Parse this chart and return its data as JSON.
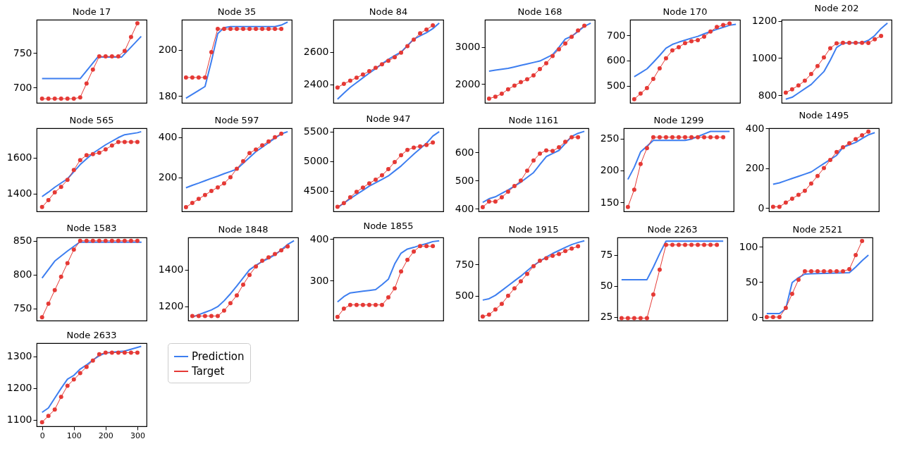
{
  "chart_data": [
    {
      "type": "line",
      "title": "Node 17",
      "xlim": [
        -17,
        329
      ],
      "ylim": [
        678,
        798
      ],
      "yticks": [
        700,
        750
      ],
      "tick_labels": "y",
      "series": [
        {
          "color": "#3d7ef0",
          "x": [
            0,
            120,
            175,
            250,
            312
          ],
          "values": [
            713,
            713,
            744,
            744,
            774
          ]
        },
        {
          "color": "#e53935",
          "marker": "circle",
          "x": [
            0,
            20,
            40,
            60,
            80,
            100,
            120,
            140,
            160,
            180,
            200,
            220,
            240,
            260,
            280,
            300
          ],
          "values": [
            684,
            684,
            684,
            684,
            684,
            684,
            686,
            706,
            726,
            745,
            745,
            745,
            745,
            753,
            773,
            793
          ]
        }
      ]
    },
    {
      "type": "line",
      "title": "Node 35",
      "categories": [
        null,
        null,
        null,
        null,
        null,
        null,
        null,
        null,
        null,
        null,
        null,
        null,
        null,
        null,
        null,
        null,
        null
      ],
      "ylim": [
        177,
        213
      ],
      "yticks": [
        180,
        200
      ],
      "tick_labels": "y",
      "series": [
        {
          "color": "#3d7ef0",
          "values": [
            179,
            180.7,
            182.4,
            184.1,
            195,
            207,
            209.6,
            210,
            210,
            210,
            210,
            210,
            210,
            210,
            210,
            210.7,
            212
          ]
        },
        {
          "color": "#e53935",
          "marker": "circle",
          "values": [
            188,
            188,
            188,
            188,
            199,
            209,
            209,
            209,
            209,
            209,
            209,
            209,
            209,
            209,
            209,
            209,
            null
          ]
        }
      ]
    },
    {
      "type": "line",
      "title": "Node 84",
      "categories": [
        null,
        null,
        null,
        null,
        null,
        null,
        null,
        null,
        null,
        null,
        null,
        null,
        null,
        null,
        null,
        null,
        null
      ],
      "ylim": [
        2286,
        2800
      ],
      "yticks": [
        2400,
        2600
      ],
      "tick_labels": "y",
      "series": [
        {
          "color": "#3d7ef0",
          "values": [
            2309,
            2346,
            2382,
            2411,
            2441,
            2470,
            2498,
            2527,
            2555,
            2578,
            2600,
            2640,
            2680,
            2700,
            2720,
            2745,
            2779
          ]
        },
        {
          "color": "#e53935",
          "marker": "circle",
          "values": [
            2381,
            2404,
            2423,
            2442,
            2461,
            2482,
            2503,
            2525,
            2546,
            2568,
            2596,
            2637,
            2677,
            2716,
            2739,
            2765,
            null
          ]
        }
      ]
    },
    {
      "type": "line",
      "title": "Node 168",
      "categories": [
        null,
        null,
        null,
        null,
        null,
        null,
        null,
        null,
        null,
        null,
        null,
        null,
        null,
        null,
        null,
        null,
        null
      ],
      "ylim": [
        1485,
        3738
      ],
      "yticks": [
        2000,
        3000
      ],
      "tick_labels": "y",
      "series": [
        {
          "color": "#3d7ef0",
          "values": [
            2346,
            2371,
            2395,
            2420,
            2460,
            2500,
            2540,
            2580,
            2620,
            2705,
            2790,
            2990,
            3215,
            3290,
            3420,
            3560,
            3646
          ]
        },
        {
          "color": "#e53935",
          "marker": "circle",
          "values": [
            1600,
            1654,
            1731,
            1854,
            1954,
            2046,
            2123,
            2231,
            2400,
            2561,
            2754,
            2938,
            3092,
            3277,
            3446,
            3577,
            null
          ]
        }
      ]
    },
    {
      "type": "line",
      "title": "Node 170",
      "categories": [
        null,
        null,
        null,
        null,
        null,
        null,
        null,
        null,
        null,
        null,
        null,
        null,
        null,
        null,
        null,
        null,
        null
      ],
      "ylim": [
        432,
        762
      ],
      "yticks": [
        500,
        600,
        700
      ],
      "tick_labels": "y",
      "series": [
        {
          "color": "#3d7ef0",
          "values": [
            536,
            551,
            567,
            593,
            620,
            649,
            664,
            673,
            681,
            689,
            696,
            706,
            715,
            724,
            732,
            740,
            744
          ]
        },
        {
          "color": "#e53935",
          "marker": "circle",
          "values": [
            447,
            469,
            491,
            527,
            569,
            609,
            640,
            653,
            669,
            677,
            681,
            695,
            715,
            733,
            741,
            747,
            null
          ]
        }
      ]
    },
    {
      "type": "line",
      "title": "Node 202",
      "categories": [
        null,
        null,
        null,
        null,
        null,
        null,
        null,
        null,
        null,
        null,
        null,
        null,
        null,
        null,
        null,
        null,
        null
      ],
      "ylim": [
        759,
        1206
      ],
      "yticks": [
        800,
        1000,
        1200
      ],
      "tick_labels": "y",
      "series": [
        {
          "color": "#3d7ef0",
          "values": [
            779,
            789,
            812,
            835,
            858,
            893,
            927,
            988,
            1057,
            1079,
            1082,
            1082,
            1082,
            1095,
            1121,
            1159,
            1188
          ]
        },
        {
          "color": "#e53935",
          "marker": "circle",
          "values": [
            814,
            832,
            853,
            878,
            914,
            957,
            1003,
            1053,
            1079,
            1082,
            1082,
            1082,
            1082,
            1081,
            1101,
            1119,
            null
          ]
        }
      ]
    },
    {
      "type": "line",
      "title": "Node 565",
      "xlim": [
        -17,
        329
      ],
      "ylim": [
        1302,
        1764
      ],
      "yticks": [
        1400,
        1600
      ],
      "tick_labels": "y",
      "series": [
        {
          "color": "#3d7ef0",
          "x": [
            0,
            20,
            40,
            80,
            120,
            160,
            200,
            240,
            260,
            300,
            312
          ],
          "values": [
            1384,
            1409,
            1436,
            1483,
            1562,
            1625,
            1672,
            1712,
            1728,
            1739,
            1745
          ]
        },
        {
          "color": "#e53935",
          "marker": "circle",
          "x": [
            0,
            20,
            40,
            60,
            80,
            100,
            120,
            140,
            160,
            180,
            200,
            220,
            240,
            260,
            280,
            300
          ],
          "values": [
            1326,
            1365,
            1408,
            1438,
            1477,
            1532,
            1587,
            1614,
            1620,
            1628,
            1647,
            1668,
            1688,
            1688,
            1688,
            1688
          ]
        }
      ]
    },
    {
      "type": "line",
      "title": "Node 597",
      "categories": [
        null,
        null,
        null,
        null,
        null,
        null,
        null,
        null,
        null,
        null,
        null,
        null,
        null,
        null,
        null,
        null,
        null
      ],
      "ylim": [
        30,
        445
      ],
      "yticks": [
        200,
        400
      ],
      "tick_labels": "y",
      "series": [
        {
          "color": "#3d7ef0",
          "values": [
            148,
            160,
            171,
            183,
            195,
            206,
            218,
            229,
            241,
            270,
            299,
            328,
            350,
            373,
            395,
            417,
            428
          ]
        },
        {
          "color": "#e53935",
          "marker": "circle",
          "values": [
            51,
            72,
            92,
            112,
            132,
            150,
            170,
            201,
            243,
            281,
            321,
            339,
            360,
            379,
            400,
            418,
            null
          ]
        }
      ]
    },
    {
      "type": "line",
      "title": "Node 947",
      "categories": [
        null,
        null,
        null,
        null,
        null,
        null,
        null,
        null,
        null,
        null,
        null,
        null,
        null,
        null,
        null,
        null,
        null
      ],
      "ylim": [
        4149,
        5558
      ],
      "yticks": [
        4500,
        5000,
        5500
      ],
      "tick_labels": "y",
      "series": [
        {
          "color": "#3d7ef0",
          "values": [
            4212,
            4289,
            4365,
            4436,
            4506,
            4577,
            4635,
            4692,
            4750,
            4834,
            4918,
            5019,
            5120,
            5212,
            5303,
            5426,
            5500
          ]
        },
        {
          "color": "#e53935",
          "marker": "circle",
          "values": [
            4226,
            4288,
            4389,
            4481,
            4553,
            4625,
            4687,
            4760,
            4865,
            4986,
            5101,
            5192,
            5231,
            5250,
            5274,
            5317,
            null
          ]
        }
      ]
    },
    {
      "type": "line",
      "title": "Node 1161",
      "categories": [
        null,
        null,
        null,
        null,
        null,
        null,
        null,
        null,
        null,
        null,
        null,
        null,
        null,
        null,
        null,
        null,
        null
      ],
      "ylim": [
        390,
        686
      ],
      "yticks": [
        400,
        500,
        600
      ],
      "tick_labels": "y",
      "series": [
        {
          "color": "#3d7ef0",
          "values": [
            422,
            435,
            442,
            454,
            466,
            480,
            494,
            511,
            528,
            557,
            585,
            596,
            607,
            632,
            657,
            668,
            675
          ]
        },
        {
          "color": "#e53935",
          "marker": "circle",
          "values": [
            405,
            425,
            425,
            440,
            460,
            480,
            500,
            535,
            571,
            596,
            607,
            605,
            618,
            638,
            654,
            654,
            null
          ]
        }
      ]
    },
    {
      "type": "line",
      "title": "Node 1299",
      "categories": [
        null,
        null,
        null,
        null,
        null,
        null,
        null,
        null,
        null,
        null,
        null,
        null,
        null,
        null,
        null,
        null,
        null
      ],
      "ylim": [
        136,
        266
      ],
      "yticks": [
        150,
        200,
        250
      ],
      "tick_labels": "y",
      "series": [
        {
          "color": "#3d7ef0",
          "values": [
            186,
            205,
            229,
            238,
            247,
            247,
            247,
            247,
            247,
            247,
            249,
            253,
            257,
            261,
            261,
            261,
            261
          ]
        },
        {
          "color": "#e53935",
          "marker": "circle",
          "values": [
            143,
            170,
            210,
            235,
            252,
            252,
            252,
            252,
            252,
            252,
            252,
            252,
            252,
            252,
            252,
            252,
            null
          ]
        }
      ]
    },
    {
      "type": "line",
      "title": "Node 1495",
      "categories": [
        null,
        null,
        null,
        null,
        null,
        null,
        null,
        null,
        null,
        null,
        null,
        null,
        null,
        null,
        null,
        null,
        null
      ],
      "ylim": [
        -16,
        401
      ],
      "yticks": [
        0,
        200,
        400
      ],
      "tick_labels": "y",
      "series": [
        {
          "color": "#3d7ef0",
          "values": [
            120,
            127,
            138,
            149,
            160,
            171,
            182,
            203,
            224,
            244,
            265,
            305,
            318,
            330,
            349,
            368,
            379
          ]
        },
        {
          "color": "#e53935",
          "marker": "circle",
          "values": [
            7,
            7,
            28,
            48,
            67,
            87,
            124,
            162,
            201,
            242,
            282,
            306,
            326,
            346,
            366,
            384,
            null
          ]
        }
      ]
    },
    {
      "type": "line",
      "title": "Node 1583",
      "xlim": [
        -17,
        329
      ],
      "ylim": [
        732,
        855
      ],
      "yticks": [
        750,
        800,
        850
      ],
      "tick_labels": "y",
      "series": [
        {
          "color": "#3d7ef0",
          "x": [
            0,
            40,
            80,
            118,
            313
          ],
          "values": [
            795,
            820,
            835,
            848,
            848
          ]
        },
        {
          "color": "#e53935",
          "marker": "circle",
          "x": [
            0,
            20,
            40,
            60,
            80,
            100,
            120,
            140,
            160,
            180,
            200,
            220,
            240,
            260,
            280,
            300
          ],
          "values": [
            737,
            757,
            777,
            797,
            817,
            837,
            850,
            850,
            850,
            850,
            850,
            850,
            850,
            850,
            850,
            850
          ]
        }
      ]
    },
    {
      "type": "line",
      "title": "Node 1848",
      "categories": [
        null,
        null,
        null,
        null,
        null,
        null,
        null,
        null,
        null,
        null,
        null,
        null,
        null,
        null,
        null,
        null,
        null
      ],
      "ylim": [
        1122,
        1575
      ],
      "yticks": [
        1200,
        1400
      ],
      "tick_labels": "y",
      "series": [
        {
          "color": "#3d7ef0",
          "values": [
            1141,
            1154,
            1167,
            1180,
            1198,
            1230,
            1268,
            1311,
            1355,
            1399,
            1423,
            1444,
            1460,
            1480,
            1508,
            1537,
            1557
          ]
        },
        {
          "color": "#e53935",
          "marker": "circle",
          "values": [
            1147,
            1147,
            1147,
            1147,
            1147,
            1177,
            1217,
            1259,
            1318,
            1371,
            1417,
            1448,
            1467,
            1485,
            1505,
            1526,
            null
          ]
        }
      ]
    },
    {
      "type": "line",
      "title": "Node 1855",
      "categories": [
        null,
        null,
        null,
        null,
        null,
        null,
        null,
        null,
        null,
        null,
        null,
        null,
        null,
        null,
        null,
        null,
        null
      ],
      "ylim": [
        203,
        404
      ],
      "yticks": [
        300,
        400
      ],
      "tick_labels": "y",
      "series": [
        {
          "color": "#3d7ef0",
          "values": [
            248,
            261,
            270,
            272,
            274,
            276,
            278,
            290,
            303,
            340,
            366,
            376,
            380,
            385,
            389,
            394,
            396
          ]
        },
        {
          "color": "#e53935",
          "marker": "circle",
          "values": [
            212,
            232,
            241,
            241,
            241,
            241,
            241,
            241,
            259,
            281,
            322,
            350,
            370,
            383,
            383,
            383,
            null
          ]
        }
      ]
    },
    {
      "type": "line",
      "title": "Node 1915",
      "categories": [
        null,
        null,
        null,
        null,
        null,
        null,
        null,
        null,
        null,
        null,
        null,
        null,
        null,
        null,
        null,
        null,
        null
      ],
      "ylim": [
        302,
        966
      ],
      "yticks": [
        500,
        750
      ],
      "tick_labels": "y",
      "series": [
        {
          "color": "#3d7ef0",
          "values": [
            466,
            477,
            504,
            542,
            581,
            619,
            657,
            700,
            742,
            776,
            809,
            838,
            862,
            886,
            909,
            926,
            939
          ]
        },
        {
          "color": "#e53935",
          "marker": "circle",
          "values": [
            334,
            350,
            391,
            436,
            500,
            559,
            616,
            675,
            736,
            780,
            800,
            820,
            834,
            857,
            877,
            895,
            null
          ]
        }
      ]
    },
    {
      "type": "line",
      "title": "Node 2263",
      "categories": [
        null,
        null,
        null,
        null,
        null,
        null,
        null,
        null,
        null,
        null,
        null,
        null,
        null,
        null,
        null,
        null,
        null
      ],
      "ylim": [
        22,
        89
      ],
      "yticks": [
        25,
        50,
        75
      ],
      "tick_labels": "y",
      "series": [
        {
          "color": "#3d7ef0",
          "values": [
            55,
            55,
            55,
            55,
            55,
            65,
            76,
            86,
            86,
            86,
            86,
            86,
            86,
            86,
            86,
            86,
            86
          ]
        },
        {
          "color": "#e53935",
          "marker": "circle",
          "values": [
            24,
            24,
            24,
            24,
            24,
            43,
            63,
            83,
            83,
            83,
            83,
            83,
            83,
            83,
            83,
            83,
            null
          ]
        }
      ]
    },
    {
      "type": "line",
      "title": "Node 2521",
      "categories": [
        null,
        null,
        null,
        null,
        null,
        null,
        null,
        null,
        null,
        null,
        null,
        null,
        null,
        null,
        null,
        null,
        null
      ],
      "ylim": [
        -5,
        113
      ],
      "yticks": [
        0,
        50,
        100
      ],
      "tick_labels": "y",
      "series": [
        {
          "color": "#3d7ef0",
          "values": [
            5,
            5,
            5,
            12,
            49,
            56,
            61,
            61.4,
            61.7,
            62,
            62.2,
            62.5,
            62.7,
            63,
            71,
            80,
            88
          ]
        },
        {
          "color": "#e53935",
          "marker": "circle",
          "values": [
            0,
            0,
            0,
            13,
            33,
            53,
            65,
            65,
            65,
            65,
            65,
            65,
            65,
            68,
            88,
            108,
            null
          ]
        }
      ]
    },
    {
      "type": "line",
      "title": "Node 2633",
      "xlim": [
        -17,
        329
      ],
      "ylim": [
        1079,
        1342
      ],
      "yticks": [
        1100,
        1200,
        1300
      ],
      "xticks": [
        0,
        100,
        200,
        300
      ],
      "legend": "right",
      "series": [
        {
          "name": "Prediction",
          "color": "#3d7ef0",
          "x": [
            0,
            20,
            40,
            60,
            80,
            100,
            120,
            140,
            160,
            180,
            200,
            240,
            260,
            312
          ],
          "values": [
            1123,
            1137,
            1168,
            1199,
            1228,
            1240,
            1260,
            1273,
            1289,
            1302,
            1311,
            1315,
            1317,
            1332
          ]
        },
        {
          "name": "Target",
          "color": "#e53935",
          "marker": "circle",
          "x": [
            0,
            20,
            40,
            60,
            80,
            100,
            120,
            140,
            160,
            180,
            200,
            220,
            240,
            260,
            280,
            300
          ],
          "values": [
            1092,
            1112,
            1132,
            1172,
            1207,
            1227,
            1247,
            1267,
            1287,
            1307,
            1312,
            1312,
            1312,
            1312,
            1312,
            1312
          ]
        }
      ]
    }
  ]
}
